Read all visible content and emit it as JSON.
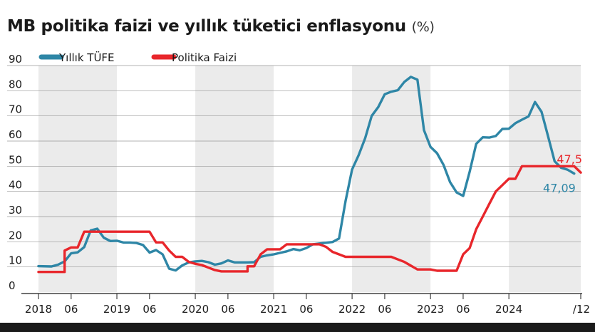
{
  "title": "MB politika faizi ve yıllık tüketici enflasyonu",
  "unit": "(%)",
  "colors": {
    "tufe": "#2e86a6",
    "faiz": "#e8262b",
    "band": "#ebebeb",
    "text": "#1a1a1a"
  },
  "chart_data": {
    "type": "line",
    "title": "MB politika faizi ve yıllık tüketici enflasyonu",
    "unit": "%",
    "ylim": [
      0,
      90
    ],
    "y_ticks": [
      "0",
      "10",
      "20",
      "30",
      "40",
      "50",
      "60",
      "70",
      "80",
      "90"
    ],
    "x_range": [
      "2018-01",
      "2025-12"
    ],
    "x_ticks": [
      {
        "label": "2018",
        "date": "2018-01"
      },
      {
        "label": "06",
        "date": "2018-06"
      },
      {
        "label": "2019",
        "date": "2019-01"
      },
      {
        "label": "06",
        "date": "2019-06"
      },
      {
        "label": "2020",
        "date": "2020-01"
      },
      {
        "label": "06",
        "date": "2020-06"
      },
      {
        "label": "2021",
        "date": "2021-01"
      },
      {
        "label": "06",
        "date": "2021-06"
      },
      {
        "label": "2022",
        "date": "2022-01"
      },
      {
        "label": "06",
        "date": "2022-06"
      },
      {
        "label": "2023",
        "date": "2023-01"
      },
      {
        "label": "06",
        "date": "2023-06"
      },
      {
        "label": "2024",
        "date": "2024-01"
      },
      {
        "label": "/12",
        "date": "2024-12"
      }
    ],
    "shaded_periods": [
      [
        "2018-01",
        "2018-12"
      ],
      [
        "2020-01",
        "2020-12"
      ],
      [
        "2022-01",
        "2022-12"
      ],
      [
        "2024-01",
        "2024-12"
      ]
    ],
    "grid": true,
    "legend_position": "top-left",
    "series": [
      {
        "name": "Yıllık TÜFE",
        "color": "#2e86a6",
        "end_label": "47,09",
        "points": [
          [
            "2018-01",
            10.3
          ],
          [
            "2018-03",
            10.2
          ],
          [
            "2018-04",
            10.9
          ],
          [
            "2018-05",
            12.2
          ],
          [
            "2018-06",
            15.4
          ],
          [
            "2018-07",
            15.8
          ],
          [
            "2018-08",
            17.9
          ],
          [
            "2018-09",
            24.5
          ],
          [
            "2018-10",
            25.2
          ],
          [
            "2018-11",
            21.6
          ],
          [
            "2018-12",
            20.3
          ],
          [
            "2019-01",
            20.4
          ],
          [
            "2019-02",
            19.7
          ],
          [
            "2019-03",
            19.7
          ],
          [
            "2019-04",
            19.5
          ],
          [
            "2019-05",
            18.7
          ],
          [
            "2019-06",
            15.7
          ],
          [
            "2019-07",
            16.7
          ],
          [
            "2019-08",
            15.0
          ],
          [
            "2019-09",
            9.3
          ],
          [
            "2019-10",
            8.6
          ],
          [
            "2019-11",
            10.6
          ],
          [
            "2019-12",
            11.8
          ],
          [
            "2020-01",
            12.2
          ],
          [
            "2020-02",
            12.4
          ],
          [
            "2020-03",
            11.9
          ],
          [
            "2020-04",
            10.9
          ],
          [
            "2020-05",
            11.4
          ],
          [
            "2020-06",
            12.6
          ],
          [
            "2020-07",
            11.8
          ],
          [
            "2020-08",
            11.8
          ],
          [
            "2020-09",
            11.8
          ],
          [
            "2020-10",
            11.9
          ],
          [
            "2020-11",
            14.0
          ],
          [
            "2020-12",
            14.6
          ],
          [
            "2021-01",
            15.0
          ],
          [
            "2021-02",
            15.6
          ],
          [
            "2021-03",
            16.2
          ],
          [
            "2021-04",
            17.1
          ],
          [
            "2021-05",
            16.6
          ],
          [
            "2021-06",
            17.5
          ],
          [
            "2021-07",
            19.0
          ],
          [
            "2021-08",
            19.3
          ],
          [
            "2021-09",
            19.6
          ],
          [
            "2021-10",
            19.9
          ],
          [
            "2021-11",
            21.3
          ],
          [
            "2021-12",
            36.1
          ],
          [
            "2022-01",
            48.7
          ],
          [
            "2022-02",
            54.4
          ],
          [
            "2022-03",
            61.1
          ],
          [
            "2022-04",
            70.0
          ],
          [
            "2022-05",
            73.5
          ],
          [
            "2022-06",
            78.6
          ],
          [
            "2022-07",
            79.6
          ],
          [
            "2022-08",
            80.2
          ],
          [
            "2022-09",
            83.5
          ],
          [
            "2022-10",
            85.5
          ],
          [
            "2022-11",
            84.4
          ],
          [
            "2022-12",
            64.3
          ],
          [
            "2023-01",
            57.7
          ],
          [
            "2023-02",
            55.2
          ],
          [
            "2023-03",
            50.5
          ],
          [
            "2023-04",
            43.7
          ],
          [
            "2023-05",
            39.6
          ],
          [
            "2023-06",
            38.2
          ],
          [
            "2023-07",
            47.8
          ],
          [
            "2023-08",
            58.9
          ],
          [
            "2023-09",
            61.5
          ],
          [
            "2023-10",
            61.4
          ],
          [
            "2023-11",
            62.0
          ],
          [
            "2023-12",
            64.8
          ],
          [
            "2024-01",
            64.9
          ],
          [
            "2024-02",
            67.1
          ],
          [
            "2024-03",
            68.5
          ],
          [
            "2024-04",
            69.8
          ],
          [
            "2024-05",
            75.5
          ],
          [
            "2024-06",
            71.6
          ],
          [
            "2024-07",
            61.8
          ],
          [
            "2024-08",
            52.0
          ],
          [
            "2024-09",
            49.4
          ],
          [
            "2024-10",
            48.6
          ],
          [
            "2024-11",
            47.1
          ]
        ]
      },
      {
        "name": "Politika Faizi",
        "color": "#e8262b",
        "end_label": "47,5",
        "points": [
          [
            "2018-01",
            8.0
          ],
          [
            "2018-05",
            8.0
          ],
          [
            "2018-05",
            16.5
          ],
          [
            "2018-06",
            17.75
          ],
          [
            "2018-07",
            17.75
          ],
          [
            "2018-08",
            24.0
          ],
          [
            "2019-01",
            24.0
          ],
          [
            "2019-06",
            24.0
          ],
          [
            "2019-07",
            19.75
          ],
          [
            "2019-08",
            19.75
          ],
          [
            "2019-09",
            16.5
          ],
          [
            "2019-10",
            14.0
          ],
          [
            "2019-11",
            14.0
          ],
          [
            "2019-12",
            12.0
          ],
          [
            "2020-01",
            11.25
          ],
          [
            "2020-02",
            10.75
          ],
          [
            "2020-03",
            9.75
          ],
          [
            "2020-04",
            8.75
          ],
          [
            "2020-05",
            8.25
          ],
          [
            "2020-09",
            8.25
          ],
          [
            "2020-09",
            10.25
          ],
          [
            "2020-10",
            10.25
          ],
          [
            "2020-11",
            15.0
          ],
          [
            "2020-12",
            17.0
          ],
          [
            "2021-02",
            17.0
          ],
          [
            "2021-03",
            19.0
          ],
          [
            "2021-08",
            19.0
          ],
          [
            "2021-09",
            18.0
          ],
          [
            "2021-10",
            16.0
          ],
          [
            "2021-11",
            15.0
          ],
          [
            "2021-12",
            14.0
          ],
          [
            "2022-07",
            14.0
          ],
          [
            "2022-08",
            13.0
          ],
          [
            "2022-09",
            12.0
          ],
          [
            "2022-10",
            10.5
          ],
          [
            "2022-11",
            9.0
          ],
          [
            "2023-01",
            9.0
          ],
          [
            "2023-02",
            8.5
          ],
          [
            "2023-05",
            8.5
          ],
          [
            "2023-06",
            15.0
          ],
          [
            "2023-07",
            17.5
          ],
          [
            "2023-08",
            25.0
          ],
          [
            "2023-09",
            30.0
          ],
          [
            "2023-10",
            35.0
          ],
          [
            "2023-11",
            40.0
          ],
          [
            "2023-12",
            42.5
          ],
          [
            "2024-01",
            45.0
          ],
          [
            "2024-02",
            45.0
          ],
          [
            "2024-03",
            50.0
          ],
          [
            "2024-11",
            50.0
          ],
          [
            "2024-12",
            47.5
          ]
        ]
      }
    ]
  }
}
